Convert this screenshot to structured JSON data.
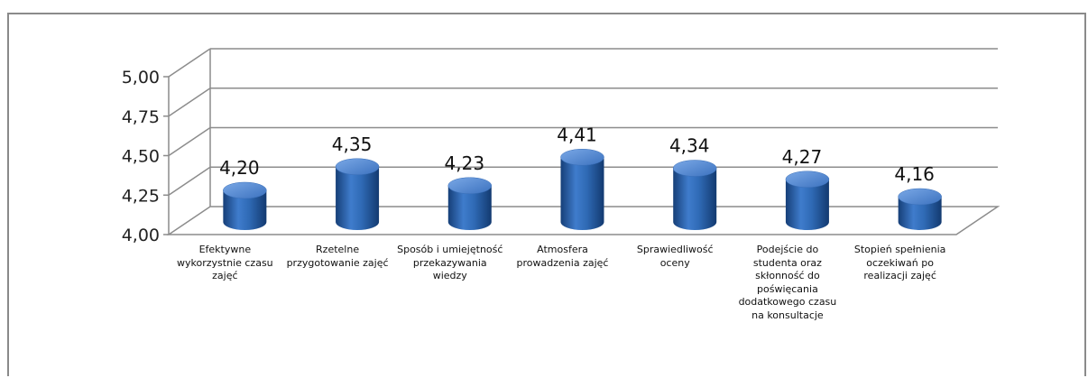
{
  "chart_data": {
    "type": "bar",
    "style": "3d-cylinder",
    "categories": [
      "Efektywne wykorzystnie czasu zajęć",
      "Rzetelne przygotowanie zajęć",
      "Sposób i umiejętność przekazywania wiedzy",
      "Atmosfera prowadzenia zajęć",
      "Sprawiedliwość oceny",
      "Podejście do studenta oraz skłonność do poświęcania dodatkowego czasu na konsultacje",
      "Stopień spełnienia oczekiwań po realizacji zajęć"
    ],
    "values": [
      4.2,
      4.35,
      4.23,
      4.41,
      4.34,
      4.27,
      4.16
    ],
    "value_labels": [
      "4,20",
      "4,35",
      "4,23",
      "4,41",
      "4,34",
      "4,27",
      "4,16"
    ],
    "y_ticks": [
      "4,00",
      "4,25",
      "4,50",
      "4,75",
      "5,00"
    ],
    "ylim": [
      4.0,
      5.0
    ],
    "grid": true,
    "legend": "none",
    "bar_color": "#2f6ab5",
    "bar_dark": "#163f78",
    "bar_light": "#6f9fe0",
    "grid_color": "#8c8c8c"
  }
}
